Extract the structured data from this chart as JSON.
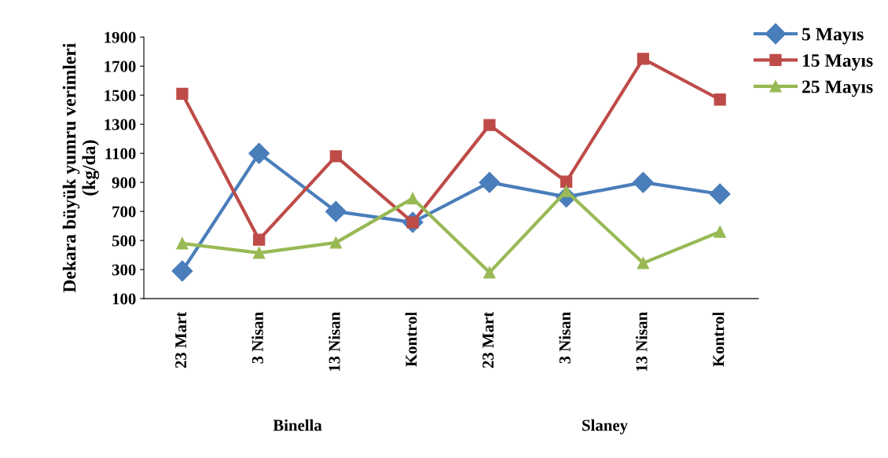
{
  "chart_data": {
    "type": "line",
    "ylabel": "Dekara büyük yumru verimleri\n(kg/da)",
    "categories": [
      "23 Mart",
      "3 Nisan",
      "13 Nisan",
      "Kontrol",
      "23 Mart",
      "3 Nisan",
      "13 Nisan",
      "Kontrol"
    ],
    "annotations": [
      "Binella",
      "Slaney"
    ],
    "series": [
      {
        "name": "5 Mayıs",
        "color": "#4a7ebb",
        "marker": "diamond",
        "values": [
          290,
          1100,
          700,
          625,
          900,
          800,
          900,
          820
        ]
      },
      {
        "name": "15 Mayıs",
        "color": "#be4b48",
        "marker": "square",
        "values": [
          1510,
          505,
          1080,
          625,
          1295,
          905,
          1750,
          1470
        ]
      },
      {
        "name": "25 Mayıs",
        "color": "#98b954",
        "marker": "triangle",
        "values": [
          480,
          415,
          485,
          790,
          280,
          840,
          345,
          560
        ]
      }
    ],
    "ylim": [
      100,
      1900
    ],
    "yticks": [
      100,
      300,
      500,
      700,
      900,
      1100,
      1300,
      1500,
      1700,
      1900
    ],
    "grid": false,
    "legend": "top right",
    "line_style": "solid"
  }
}
